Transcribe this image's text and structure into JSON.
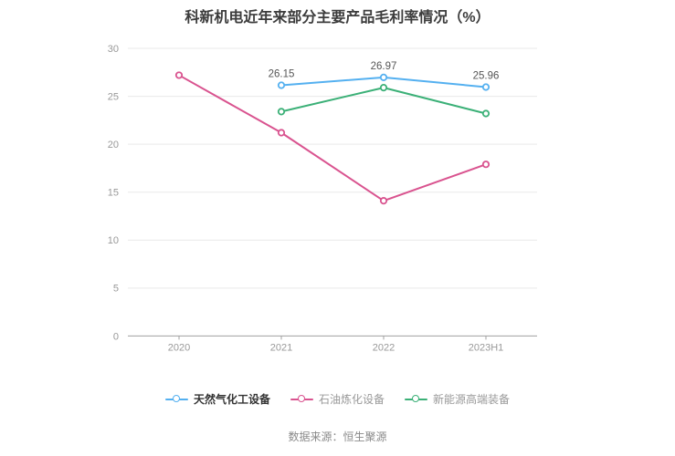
{
  "title": "科新机电近年来部分主要产品毛利率情况（%）",
  "source": "数据来源：恒生聚源",
  "colors": {
    "background": "#ffffff",
    "title_text": "#3c3c3c",
    "axis_label": "#999999",
    "grid_line": "#e9e9e9",
    "axis_line": "#a0a0a0",
    "data_label": "#555555"
  },
  "chart_data": {
    "type": "line",
    "title": "科新机电近年来部分主要产品毛利率情况（%）",
    "categories": [
      "2020",
      "2021",
      "2022",
      "2023H1"
    ],
    "series": [
      {
        "name": "天然气化工设备",
        "color": "#54b0f0",
        "values": [
          null,
          26.15,
          26.97,
          25.96
        ],
        "point_labels": [
          null,
          "26.15",
          "26.97",
          "25.96"
        ],
        "legend_text_color": "#333333",
        "legend_text_bold": true
      },
      {
        "name": "石油炼化设备",
        "color": "#d9538f",
        "values": [
          27.2,
          21.2,
          14.1,
          17.9
        ],
        "point_labels": null,
        "legend_text_color": "#999999",
        "legend_text_bold": false
      },
      {
        "name": "新能源高端装备",
        "color": "#3bb077",
        "values": [
          null,
          23.4,
          25.9,
          23.2
        ],
        "point_labels": null,
        "legend_text_color": "#999999",
        "legend_text_bold": false
      }
    ],
    "ylim": [
      0,
      30
    ],
    "yticks": [
      0,
      5,
      10,
      15,
      20,
      25,
      30
    ],
    "grid": true,
    "legend_position": "bottom",
    "marker": "hollow-circle"
  }
}
